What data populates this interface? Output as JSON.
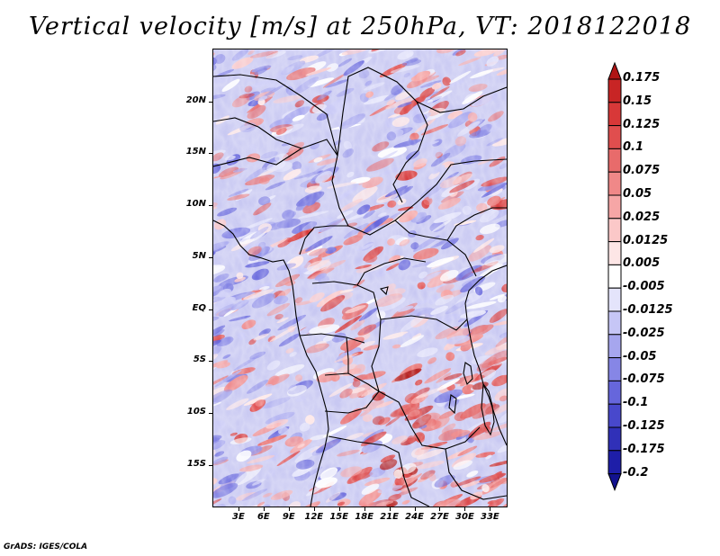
{
  "title": "Vertical velocity [m/s] at 250hPa, VT: 2018122018",
  "credit": "GrADS: IGES/COLA",
  "map": {
    "lat_range": [
      -19,
      25
    ],
    "lon_range": [
      0,
      35
    ],
    "lat_labels": [
      {
        "lat": 20,
        "text": "20N"
      },
      {
        "lat": 15,
        "text": "15N"
      },
      {
        "lat": 10,
        "text": "10N"
      },
      {
        "lat": 5,
        "text": "5N"
      },
      {
        "lat": 0,
        "text": "EQ"
      },
      {
        "lat": -5,
        "text": "5S"
      },
      {
        "lat": -10,
        "text": "10S"
      },
      {
        "lat": -15,
        "text": "15S"
      }
    ],
    "lon_labels": [
      {
        "lon": 3,
        "text": "3E"
      },
      {
        "lon": 6,
        "text": "6E"
      },
      {
        "lon": 9,
        "text": "9E"
      },
      {
        "lon": 12,
        "text": "12E"
      },
      {
        "lon": 15,
        "text": "15E"
      },
      {
        "lon": 18,
        "text": "18E"
      },
      {
        "lon": 21,
        "text": "21E"
      },
      {
        "lon": 24,
        "text": "24E"
      },
      {
        "lon": 27,
        "text": "27E"
      },
      {
        "lon": 30,
        "text": "30E"
      },
      {
        "lon": 33,
        "text": "33E"
      }
    ]
  },
  "colorbar": {
    "levels": [
      "0.175",
      "0.15",
      "0.125",
      "0.1",
      "0.075",
      "0.05",
      "0.025",
      "0.0125",
      "0.005",
      "-0.005",
      "-0.0125",
      "-0.025",
      "-0.05",
      "-0.075",
      "-0.1",
      "-0.125",
      "-0.175",
      "-0.2"
    ],
    "colors": [
      "#b01515",
      "#c82525",
      "#d83838",
      "#e04e4e",
      "#e86b6b",
      "#f08888",
      "#f6a6a6",
      "#fbc8c8",
      "#fde6e6",
      "#ffffff",
      "#e4e4fb",
      "#c6c6f6",
      "#a6a6ee",
      "#8686e6",
      "#6666dc",
      "#4848cc",
      "#3030b8",
      "#1e1ea8",
      "#12128f"
    ]
  }
}
